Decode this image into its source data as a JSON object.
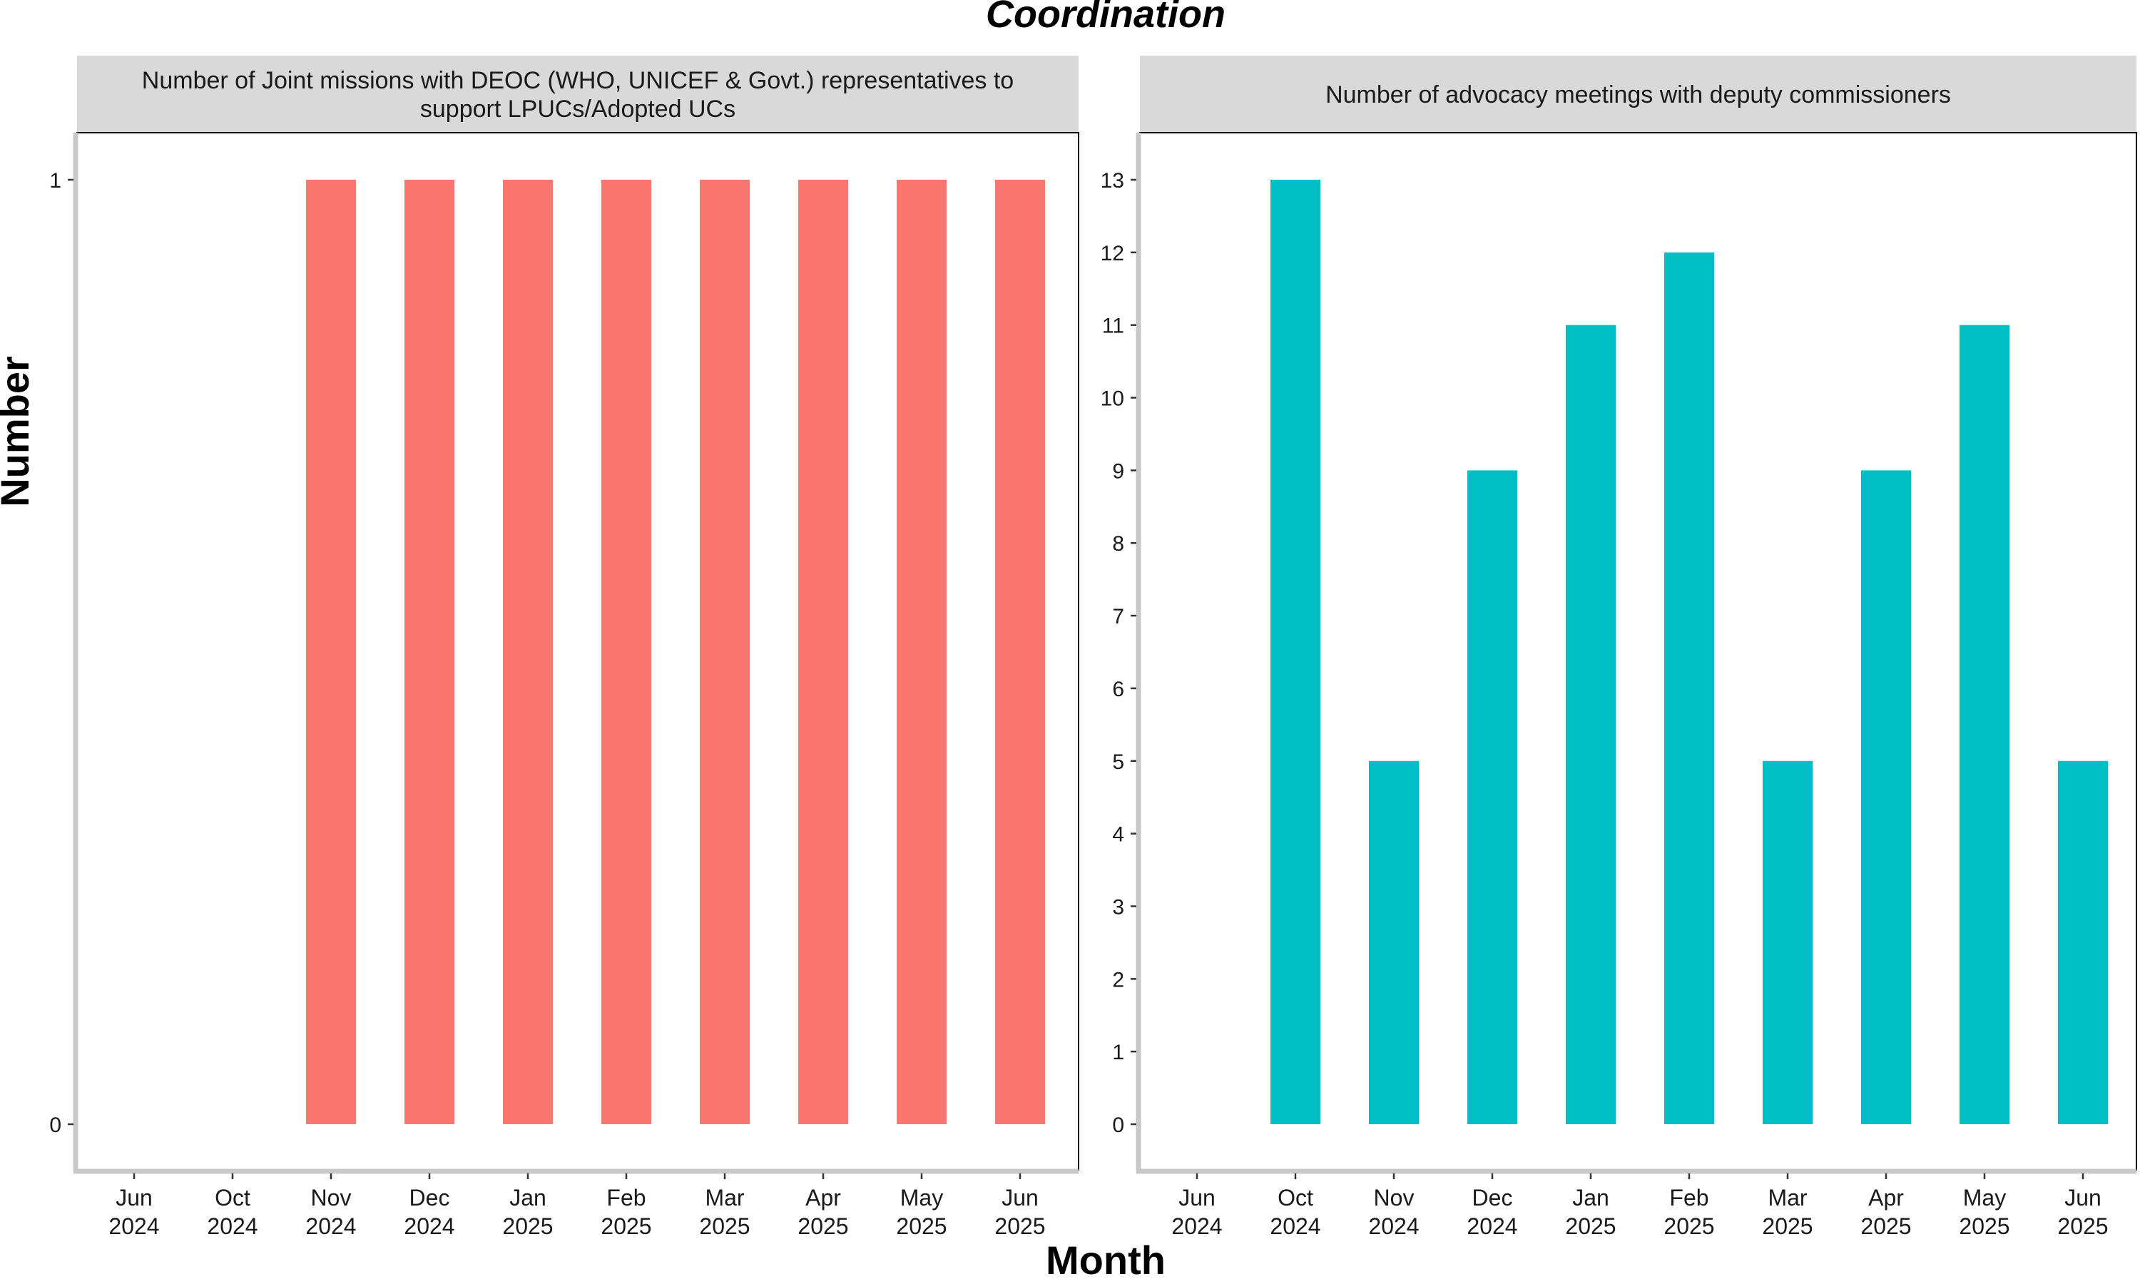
{
  "title": "Coordination",
  "xlabel": "Month",
  "ylabel": "Number",
  "chart_data": [
    {
      "type": "bar",
      "title": "Number of Joint missions with DEOC (WHO, UNICEF & Govt.) representatives to support LPUCs/Adopted UCs",
      "title_lines": [
        "Number of Joint missions with DEOC (WHO, UNICEF & Govt.) representatives to",
        "support LPUCs/Adopted UCs"
      ],
      "color": "#F8766D",
      "ylim": [
        0,
        1
      ],
      "y_ticks": [
        0,
        1
      ],
      "x_ticks": [
        {
          "month": "Jun",
          "year": "2024"
        },
        {
          "month": "Oct",
          "year": "2024"
        },
        {
          "month": "Nov",
          "year": "2024"
        },
        {
          "month": "Dec",
          "year": "2024"
        },
        {
          "month": "Jan",
          "year": "2025"
        },
        {
          "month": "Feb",
          "year": "2025"
        },
        {
          "month": "Mar",
          "year": "2025"
        },
        {
          "month": "Apr",
          "year": "2025"
        },
        {
          "month": "May",
          "year": "2025"
        },
        {
          "month": "Jun",
          "year": "2025"
        }
      ],
      "categories": [
        "Nov 2024",
        "Dec 2024",
        "Jan 2025",
        "Feb 2025",
        "Mar 2025",
        "Apr 2025",
        "May 2025",
        "Jun 2025"
      ],
      "values": [
        1,
        1,
        1,
        1,
        1,
        1,
        1,
        1
      ]
    },
    {
      "type": "bar",
      "title": "Number of advocacy meetings with deputy commissioners",
      "title_lines": [
        "Number of advocacy meetings with deputy commissioners"
      ],
      "color": "#00BFC4",
      "ylim": [
        0,
        13
      ],
      "y_ticks": [
        0,
        1,
        2,
        3,
        4,
        5,
        6,
        7,
        8,
        9,
        10,
        11,
        12,
        13
      ],
      "x_ticks": [
        {
          "month": "Jun",
          "year": "2024"
        },
        {
          "month": "Oct",
          "year": "2024"
        },
        {
          "month": "Nov",
          "year": "2024"
        },
        {
          "month": "Dec",
          "year": "2024"
        },
        {
          "month": "Jan",
          "year": "2025"
        },
        {
          "month": "Feb",
          "year": "2025"
        },
        {
          "month": "Mar",
          "year": "2025"
        },
        {
          "month": "Apr",
          "year": "2025"
        },
        {
          "month": "May",
          "year": "2025"
        },
        {
          "month": "Jun",
          "year": "2025"
        }
      ],
      "categories": [
        "Oct 2024",
        "Nov 2024",
        "Dec 2024",
        "Jan 2025",
        "Feb 2025",
        "Mar 2025",
        "Apr 2025",
        "May 2025",
        "Jun 2025"
      ],
      "values": [
        13,
        5,
        9,
        11,
        12,
        5,
        9,
        11,
        5
      ]
    }
  ]
}
